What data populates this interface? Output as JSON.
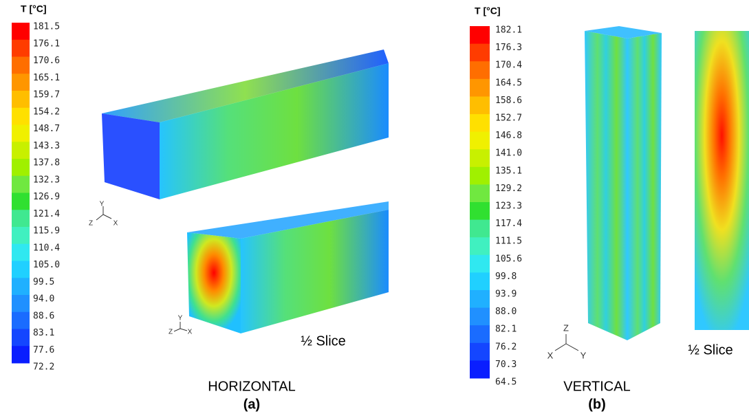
{
  "panels": [
    {
      "scale_title": "T [°C]",
      "scale_labels": [
        "181.5",
        "176.1",
        "170.6",
        "165.1",
        "159.7",
        "154.2",
        "148.7",
        "143.3",
        "137.8",
        "132.3",
        "126.9",
        "121.4",
        "115.9",
        "110.4",
        "105.0",
        "99.5",
        "94.0",
        "88.6",
        "83.1",
        "77.6",
        "72.2"
      ],
      "axes": [
        [
          "Y",
          "Z",
          "X"
        ],
        [
          "Y",
          "Z",
          "X"
        ]
      ],
      "slice_label": "½ Slice",
      "name": "HORIZONTAL",
      "letter": "(a)"
    },
    {
      "scale_title": "T [°C]",
      "scale_labels": [
        "182.1",
        "176.3",
        "170.4",
        "164.5",
        "158.6",
        "152.7",
        "146.8",
        "141.0",
        "135.1",
        "129.2",
        "123.3",
        "117.4",
        "111.5",
        "105.6",
        "99.8",
        "93.9",
        "88.0",
        "82.1",
        "76.2",
        "70.3",
        "64.5"
      ],
      "axes": [
        [
          "Z",
          "X",
          "Y"
        ]
      ],
      "slice_label": "½ Slice",
      "name": "VERTICAL",
      "letter": "(b)"
    }
  ]
}
